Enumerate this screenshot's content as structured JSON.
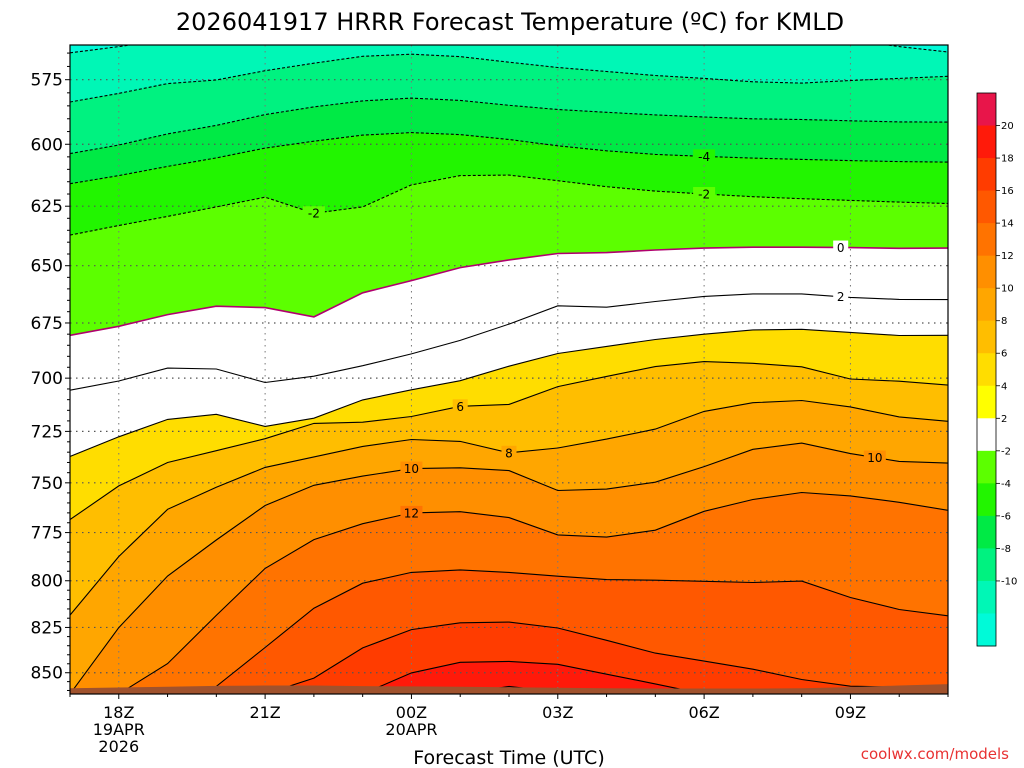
{
  "chart_data": {
    "type": "area",
    "title": "2026041917 HRRR Forecast Temperature (ºC) for KMLD",
    "xlabel": "Forecast Time (UTC)",
    "ylabel": "",
    "y_scale": "log",
    "ylim": [
      562,
      862
    ],
    "ylim_note": "pressure axis, inverted (lower pressure at top)",
    "ymajor_ticks": [
      575,
      600,
      625,
      650,
      675,
      700,
      725,
      750,
      775,
      800,
      825,
      850
    ],
    "xlim": [
      -1,
      17
    ],
    "x_ticks": [
      {
        "x": 0,
        "label": "18Z",
        "label2": "19APR",
        "label3": "2026"
      },
      {
        "x": 3,
        "label": "21Z",
        "label2": "",
        "label3": ""
      },
      {
        "x": 6,
        "label": "00Z",
        "label2": "20APR",
        "label3": ""
      },
      {
        "x": 9,
        "label": "03Z",
        "label2": "",
        "label3": ""
      },
      {
        "x": 12,
        "label": "06Z",
        "label2": "",
        "label3": ""
      },
      {
        "x": 15,
        "label": "09Z",
        "label2": "",
        "label3": ""
      }
    ],
    "grid": true,
    "colorbar": {
      "labels": [
        "20",
        "18",
        "16",
        "14",
        "12",
        "10",
        "8",
        "6",
        "4",
        "2",
        "-2",
        "-4",
        "-6",
        "-8",
        "-10"
      ],
      "bins": [
        {
          "lo": 20,
          "hi": 22,
          "color": "#e8154a"
        },
        {
          "lo": 18,
          "hi": 20,
          "color": "#ff1a0a"
        },
        {
          "lo": 16,
          "hi": 18,
          "color": "#ff3c00"
        },
        {
          "lo": 14,
          "hi": 16,
          "color": "#ff5800"
        },
        {
          "lo": 12,
          "hi": 14,
          "color": "#ff7300"
        },
        {
          "lo": 10,
          "hi": 12,
          "color": "#ff8f00"
        },
        {
          "lo": 8,
          "hi": 10,
          "color": "#ffa600"
        },
        {
          "lo": 6,
          "hi": 8,
          "color": "#ffbe00"
        },
        {
          "lo": 4,
          "hi": 6,
          "color": "#ffdd00"
        },
        {
          "lo": 2,
          "hi": 4,
          "color": "#ffff00"
        },
        {
          "lo": -2,
          "hi": 2,
          "color": "#ffffff"
        },
        {
          "lo": -4,
          "hi": -2,
          "color": "#5cff00"
        },
        {
          "lo": -6,
          "hi": -4,
          "color": "#22f500"
        },
        {
          "lo": -8,
          "hi": -6,
          "color": "#00ea45"
        },
        {
          "lo": -10,
          "hi": -8,
          "color": "#00f280"
        },
        {
          "lo": -12,
          "hi": -10,
          "color": "#00f7b6"
        },
        {
          "lo": -14,
          "hi": -12,
          "color": "#00fad8"
        }
      ]
    },
    "ground": {
      "color": "#a0522d",
      "p": [
        858.7,
        858.3,
        857.9,
        857.4,
        857.2,
        857.2,
        857.5,
        857.7,
        857.9,
        858.2,
        858.4,
        858.7,
        858.9,
        858.9,
        858.9,
        858.7,
        858.1,
        857.2,
        856.4
      ]
    },
    "contours": [
      {
        "level": -10,
        "dashed": true,
        "p": [
          564.9,
          562.6,
          560,
          560,
          560,
          560,
          560,
          560,
          560,
          560,
          560,
          560,
          560,
          560,
          560,
          560,
          560,
          562.6,
          564.6
        ]
      },
      {
        "level": -8,
        "dashed": true,
        "p": [
          583.5,
          580.2,
          576.5,
          575.1,
          571.6,
          568.8,
          566.2,
          565.4,
          566.3,
          568.4,
          570.4,
          571.9,
          573.4,
          574.5,
          575.8,
          576.3,
          575.3,
          574.5,
          573.7
        ]
      },
      {
        "level": -6,
        "dashed": true,
        "p": [
          603.7,
          600.3,
          595.9,
          592.6,
          588.4,
          585.4,
          583.1,
          582,
          582.9,
          584.8,
          586.4,
          587.5,
          588.5,
          589.3,
          590,
          590.3,
          590.8,
          591.2,
          591.3
        ]
      },
      {
        "level": -4,
        "dashed": true,
        "labels": [
          12
        ],
        "p": [
          615.8,
          612.5,
          608.8,
          605.4,
          601.5,
          598.8,
          596.4,
          595.4,
          596.2,
          598.1,
          600.6,
          602.6,
          604,
          604.8,
          605.5,
          606,
          606.5,
          606.9,
          607.1
        ]
      },
      {
        "level": -2,
        "dashed": true,
        "labels": [
          4,
          12
        ],
        "p": [
          637,
          633,
          629.2,
          625.3,
          621.3,
          627.9,
          625.3,
          616.3,
          612.5,
          612.3,
          614.6,
          617,
          618.8,
          620,
          621.1,
          621.9,
          622.6,
          623.3,
          623.9
        ]
      },
      {
        "level": 0,
        "dashed": false,
        "labels": [
          14.8
        ],
        "p": [
          680.5,
          676.5,
          671.3,
          667.6,
          668.2,
          672.3,
          661.7,
          656.4,
          650.8,
          647.5,
          644.8,
          644.4,
          643.3,
          642.5,
          642.1,
          642.1,
          642.3,
          642.6,
          642.5
        ]
      },
      {
        "level": 2,
        "dashed": false,
        "labels": [
          14.8
        ],
        "p": [
          705.6,
          701.3,
          695.4,
          695.8,
          702,
          699.1,
          694.3,
          688.9,
          682.8,
          675.5,
          667.4,
          668,
          665.5,
          663.3,
          662.2,
          662.2,
          663.7,
          664.6,
          664.7
        ]
      },
      {
        "level": 4,
        "dashed": false,
        "p": [
          737.1,
          727.6,
          719.3,
          716.9,
          722.6,
          718.7,
          710.1,
          705.4,
          701.2,
          694.5,
          688.7,
          685.5,
          682.4,
          680,
          678.1,
          677.8,
          679.2,
          680.6,
          680.5
        ]
      },
      {
        "level": 6,
        "dashed": false,
        "labels": [
          7
        ],
        "p": [
          768.4,
          751.5,
          740,
          734.3,
          728.5,
          721.2,
          720.6,
          717.9,
          713.1,
          712.2,
          703.9,
          699.2,
          694.7,
          692.4,
          693.2,
          694.8,
          700.4,
          701.4,
          703.2
        ]
      },
      {
        "level": 8,
        "dashed": false,
        "labels": [
          8
        ],
        "p": [
          818.3,
          787.3,
          763.2,
          752.2,
          742.4,
          737.3,
          732.2,
          728.9,
          729.8,
          735.3,
          733,
          728.7,
          723.9,
          715.5,
          711.4,
          710.4,
          713.4,
          718.1,
          720.2
        ]
      },
      {
        "level": 10,
        "dashed": false,
        "labels": [
          6,
          15.5
        ],
        "p": [
          862,
          825.1,
          797.5,
          778.8,
          761.3,
          751.2,
          746.7,
          743,
          742.6,
          744,
          753.8,
          753.1,
          749.7,
          742,
          733.6,
          730.6,
          735.7,
          739.5,
          740.3
        ]
      },
      {
        "level": 12,
        "dashed": false,
        "labels": [
          6
        ],
        "p": [
          862,
          862,
          844.9,
          818.5,
          793.5,
          778.6,
          770.5,
          765,
          764.4,
          767.4,
          776.2,
          777.3,
          773.8,
          764.2,
          758.3,
          754.8,
          756.5,
          759.7,
          763.7
        ]
      },
      {
        "level": 14,
        "dashed": false,
        "p": [
          862,
          862,
          862,
          857.7,
          836,
          814.6,
          801.3,
          795.6,
          794.3,
          795.6,
          797.6,
          799.4,
          799.7,
          800.3,
          800.9,
          800.2,
          808.9,
          815.3,
          818.7
        ]
      },
      {
        "level": 16,
        "dashed": false,
        "p": [
          862,
          862,
          862,
          862,
          862,
          853,
          836.2,
          826.2,
          822.5,
          822.1,
          825.3,
          832,
          839.1,
          843.5,
          848,
          853.8,
          857.6,
          858.1,
          857.5
        ]
      },
      {
        "level": 18,
        "dashed": false,
        "p": [
          862,
          862,
          862,
          862,
          862,
          862,
          862,
          850.1,
          844.2,
          843.7,
          845.3,
          850.8,
          856.3,
          862,
          862,
          862,
          862,
          862,
          862
        ]
      },
      {
        "level": 20,
        "dashed": false,
        "p": [
          862,
          862,
          862,
          862,
          862,
          862,
          862,
          862,
          862,
          857.7,
          860.9,
          862,
          862,
          862,
          862,
          862,
          862,
          862,
          862
        ]
      }
    ]
  },
  "credit": "coolwx.com/models"
}
